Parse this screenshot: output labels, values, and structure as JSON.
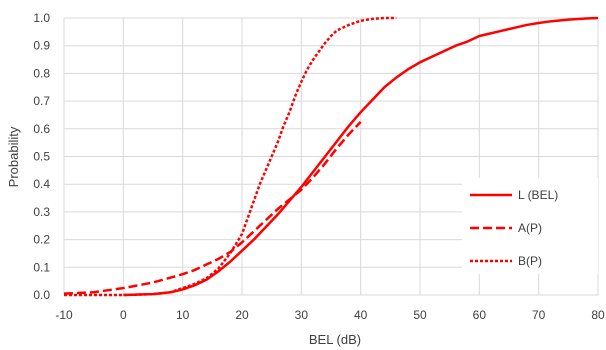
{
  "chart_data": {
    "type": "line",
    "title": "",
    "xlabel": "BEL (dB)",
    "ylabel": "Probability",
    "xlim": [
      -10,
      80
    ],
    "ylim": [
      0,
      1
    ],
    "x_ticks": [
      "-10",
      "0",
      "10",
      "20",
      "30",
      "40",
      "50",
      "60",
      "70",
      "80"
    ],
    "y_ticks": [
      "0.0",
      "0.1",
      "0.2",
      "0.3",
      "0.4",
      "0.5",
      "0.6",
      "0.7",
      "0.8",
      "0.9",
      "1.0"
    ],
    "grid": true,
    "legend_position": "bottom-right",
    "color": "#ff0000",
    "series": [
      {
        "name": "L (BEL)",
        "style": "solid",
        "points": [
          [
            0,
            0
          ],
          [
            5,
            0.003
          ],
          [
            8,
            0.01
          ],
          [
            10,
            0.02
          ],
          [
            12,
            0.035
          ],
          [
            14,
            0.055
          ],
          [
            16,
            0.085
          ],
          [
            18,
            0.12
          ],
          [
            20,
            0.16
          ],
          [
            22,
            0.2
          ],
          [
            24,
            0.245
          ],
          [
            26,
            0.29
          ],
          [
            28,
            0.34
          ],
          [
            30,
            0.39
          ],
          [
            32,
            0.445
          ],
          [
            34,
            0.5
          ],
          [
            36,
            0.555
          ],
          [
            38,
            0.61
          ],
          [
            40,
            0.66
          ],
          [
            42,
            0.705
          ],
          [
            44,
            0.75
          ],
          [
            46,
            0.785
          ],
          [
            48,
            0.815
          ],
          [
            50,
            0.84
          ],
          [
            52,
            0.86
          ],
          [
            54,
            0.88
          ],
          [
            56,
            0.9
          ],
          [
            58,
            0.915
          ],
          [
            60,
            0.935
          ],
          [
            62,
            0.945
          ],
          [
            64,
            0.955
          ],
          [
            66,
            0.965
          ],
          [
            68,
            0.975
          ],
          [
            70,
            0.982
          ],
          [
            72,
            0.988
          ],
          [
            75,
            0.994
          ],
          [
            78,
            0.998
          ],
          [
            80,
            1.0
          ]
        ]
      },
      {
        "name": "A(P)",
        "style": "dashed",
        "points": [
          [
            -10,
            0.005
          ],
          [
            -5,
            0.01
          ],
          [
            0,
            0.025
          ],
          [
            5,
            0.045
          ],
          [
            10,
            0.075
          ],
          [
            12,
            0.09
          ],
          [
            14,
            0.11
          ],
          [
            16,
            0.13
          ],
          [
            18,
            0.155
          ],
          [
            20,
            0.19
          ],
          [
            22,
            0.23
          ],
          [
            24,
            0.27
          ],
          [
            26,
            0.31
          ],
          [
            28,
            0.345
          ],
          [
            30,
            0.38
          ],
          [
            32,
            0.425
          ],
          [
            34,
            0.475
          ],
          [
            36,
            0.53
          ],
          [
            38,
            0.58
          ],
          [
            40,
            0.625
          ]
        ]
      },
      {
        "name": "B(P)",
        "style": "dotted",
        "points": [
          [
            -10,
            0
          ],
          [
            0,
            0
          ],
          [
            5,
            0.003
          ],
          [
            8,
            0.01
          ],
          [
            10,
            0.025
          ],
          [
            12,
            0.04
          ],
          [
            14,
            0.06
          ],
          [
            16,
            0.095
          ],
          [
            18,
            0.15
          ],
          [
            20,
            0.22
          ],
          [
            21,
            0.28
          ],
          [
            22,
            0.34
          ],
          [
            23,
            0.4
          ],
          [
            24,
            0.45
          ],
          [
            25,
            0.5
          ],
          [
            26,
            0.55
          ],
          [
            27,
            0.61
          ],
          [
            28,
            0.66
          ],
          [
            29,
            0.72
          ],
          [
            30,
            0.77
          ],
          [
            31,
            0.815
          ],
          [
            32,
            0.85
          ],
          [
            33,
            0.88
          ],
          [
            34,
            0.91
          ],
          [
            35,
            0.935
          ],
          [
            36,
            0.955
          ],
          [
            38,
            0.975
          ],
          [
            40,
            0.99
          ],
          [
            42,
            0.997
          ],
          [
            44,
            1.0
          ],
          [
            46,
            1.0
          ]
        ]
      }
    ]
  }
}
